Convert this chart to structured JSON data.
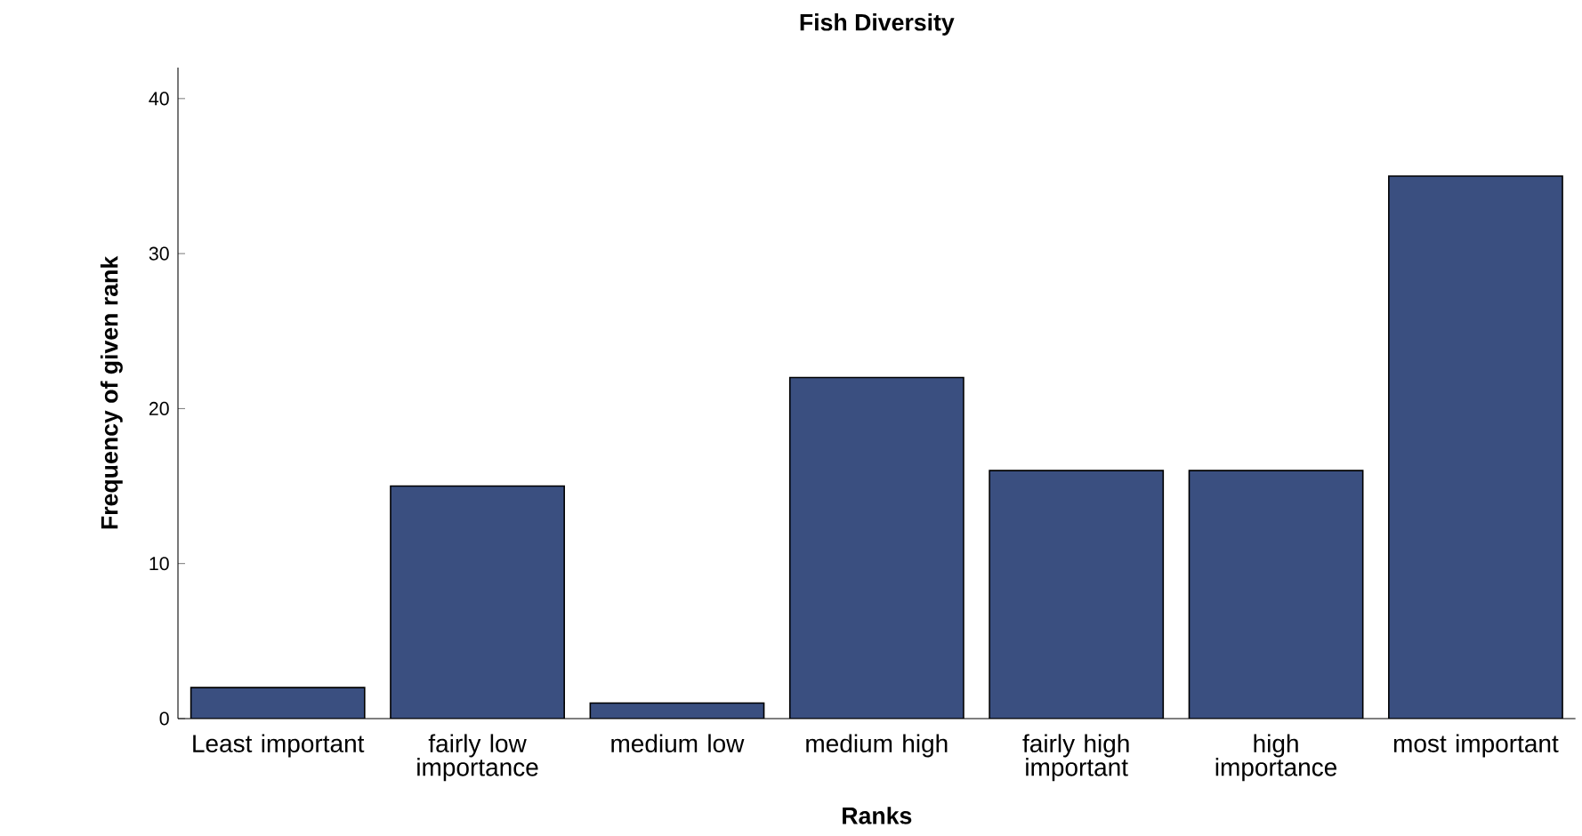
{
  "chart_data": {
    "type": "bar",
    "title": "Fish Diversity",
    "xlabel": "Ranks",
    "ylabel": "Frequency of given rank",
    "categories": [
      "Least important",
      "fairly low importance",
      "medium low",
      "medium high",
      "fairly high important",
      "high importance",
      "most important"
    ],
    "values": [
      2,
      15,
      1,
      22,
      16,
      16,
      35
    ],
    "color": "#3a4f80",
    "ylim": [
      0,
      42
    ],
    "yticks": [
      0,
      10,
      20,
      30,
      40
    ]
  }
}
